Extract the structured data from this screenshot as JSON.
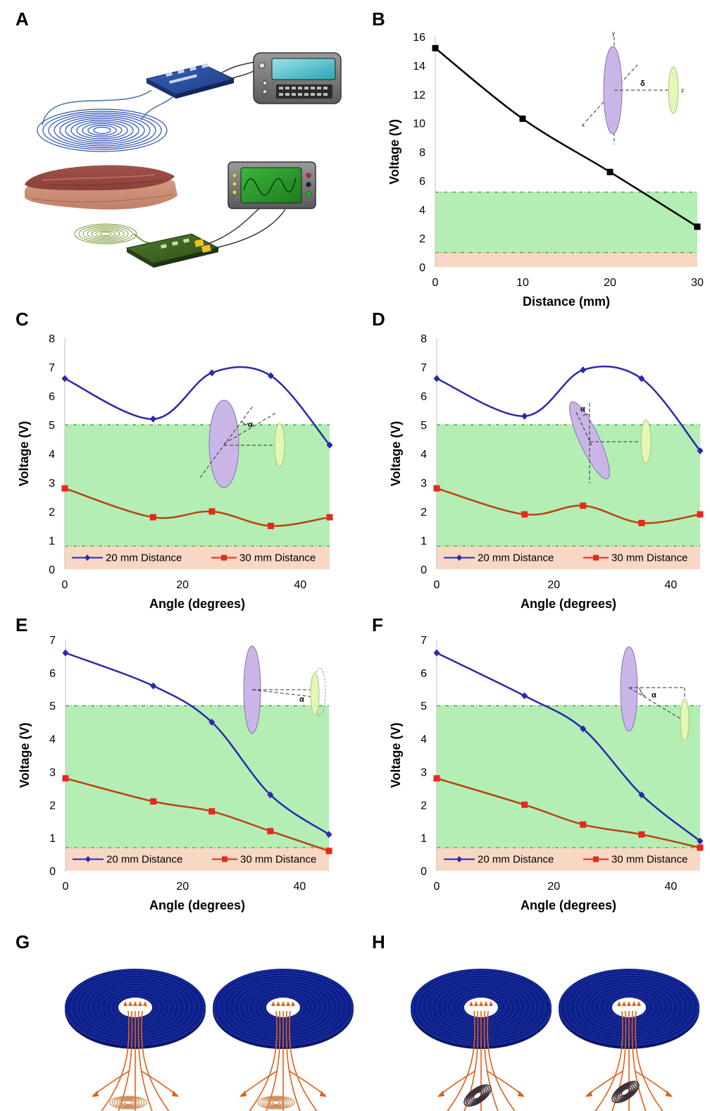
{
  "panels": {
    "A": "A",
    "B": "B",
    "C": "C",
    "D": "D",
    "E": "E",
    "F": "F",
    "G": "G",
    "H": "H"
  },
  "legend": {
    "series1": "20 mm Distance",
    "series2": "30 mm Distance"
  },
  "insets": {
    "b_axis_y": "y",
    "b_axis_x": "x",
    "b_axis_z": "z",
    "b_delta": "δ",
    "alpha": "α"
  },
  "colors": {
    "series1": "#2a2aa8",
    "series2": "#b8440f",
    "series2_marker": "#e8281c",
    "black_line": "#000000",
    "green_band": "#b4eeb4",
    "salmon_band": "#f8d8c4",
    "dashed_green": "#2c9c2c",
    "coil_blue": "#0d1f8a",
    "field_lines": "#e0601a",
    "coil_small_orange": "#c8804a",
    "coil_small_dark": "#3d2e38"
  },
  "chart_data": [
    {
      "panel": "B",
      "type": "line",
      "x": [
        0,
        10,
        20,
        30
      ],
      "series": [
        {
          "values": [
            15.2,
            10.3,
            6.6,
            2.8
          ],
          "color": "#000000"
        }
      ],
      "xlabel": "Distance (mm)",
      "ylabel": "Voltage (V)",
      "xlim": [
        0,
        30
      ],
      "ylim": [
        0,
        16
      ],
      "xticks": [
        "0",
        "10",
        "20",
        "30"
      ],
      "yticks": [
        "0",
        "2",
        "4",
        "6",
        "8",
        "10",
        "12",
        "14",
        "16"
      ],
      "bands": {
        "salmon": [
          0,
          1
        ],
        "green": [
          1,
          5.2
        ]
      }
    },
    {
      "panel": "C",
      "type": "line",
      "x": [
        0,
        15,
        25,
        35,
        45
      ],
      "series": [
        {
          "name": "20 mm Distance",
          "values": [
            6.6,
            5.2,
            6.8,
            6.7,
            4.3
          ]
        },
        {
          "name": "30 mm Distance",
          "values": [
            2.8,
            1.8,
            2.0,
            1.5,
            1.8
          ]
        }
      ],
      "xlabel": "Angle (degrees)",
      "ylabel": "Voltage (V)",
      "xlim": [
        0,
        45
      ],
      "ylim": [
        0,
        8
      ],
      "xticks": [
        "0",
        "20",
        "40"
      ],
      "yticks": [
        "0",
        "1",
        "2",
        "3",
        "4",
        "5",
        "6",
        "7",
        "8"
      ],
      "bands": {
        "salmon": [
          0,
          0.8
        ],
        "green": [
          0.8,
          5
        ]
      }
    },
    {
      "panel": "D",
      "type": "line",
      "x": [
        0,
        15,
        25,
        35,
        45
      ],
      "series": [
        {
          "name": "20 mm Distance",
          "values": [
            6.6,
            5.3,
            6.9,
            6.6,
            4.1
          ]
        },
        {
          "name": "30 mm Distance",
          "values": [
            2.8,
            1.9,
            2.2,
            1.6,
            1.9
          ]
        }
      ],
      "xlabel": "Angle (degrees)",
      "ylabel": "Voltage (V)",
      "xlim": [
        0,
        45
      ],
      "ylim": [
        0,
        8
      ],
      "xticks": [
        "0",
        "20",
        "40"
      ],
      "yticks": [
        "0",
        "1",
        "2",
        "3",
        "4",
        "5",
        "6",
        "7",
        "8"
      ],
      "bands": {
        "salmon": [
          0,
          0.8
        ],
        "green": [
          0.8,
          5
        ]
      }
    },
    {
      "panel": "E",
      "type": "line",
      "x": [
        0,
        15,
        25,
        35,
        45
      ],
      "series": [
        {
          "name": "20 mm Distance",
          "values": [
            6.6,
            5.6,
            4.5,
            2.3,
            1.1
          ]
        },
        {
          "name": "30 mm Distance",
          "values": [
            2.8,
            2.1,
            1.8,
            1.2,
            0.6
          ]
        }
      ],
      "xlabel": "Angle (degrees)",
      "ylabel": "Voltage (V)",
      "xlim": [
        0,
        45
      ],
      "ylim": [
        0,
        7
      ],
      "xticks": [
        "0",
        "20",
        "40"
      ],
      "yticks": [
        "0",
        "1",
        "2",
        "3",
        "4",
        "5",
        "6",
        "7"
      ],
      "bands": {
        "salmon": [
          0,
          0.7
        ],
        "green": [
          0.7,
          5
        ]
      }
    },
    {
      "panel": "F",
      "type": "line",
      "x": [
        0,
        15,
        25,
        35,
        45
      ],
      "series": [
        {
          "name": "20 mm Distance",
          "values": [
            6.6,
            5.3,
            4.3,
            2.3,
            0.9
          ]
        },
        {
          "name": "30 mm Distance",
          "values": [
            2.8,
            2.0,
            1.4,
            1.1,
            0.7
          ]
        }
      ],
      "xlabel": "Angle (degrees)",
      "ylabel": "Voltage (V)",
      "xlim": [
        0,
        45
      ],
      "ylim": [
        0,
        7
      ],
      "xticks": [
        "0",
        "20",
        "40"
      ],
      "yticks": [
        "0",
        "1",
        "2",
        "3",
        "4",
        "5",
        "6",
        "7"
      ],
      "bands": {
        "salmon": [
          0,
          0.7
        ],
        "green": [
          0.7,
          5
        ]
      }
    }
  ]
}
